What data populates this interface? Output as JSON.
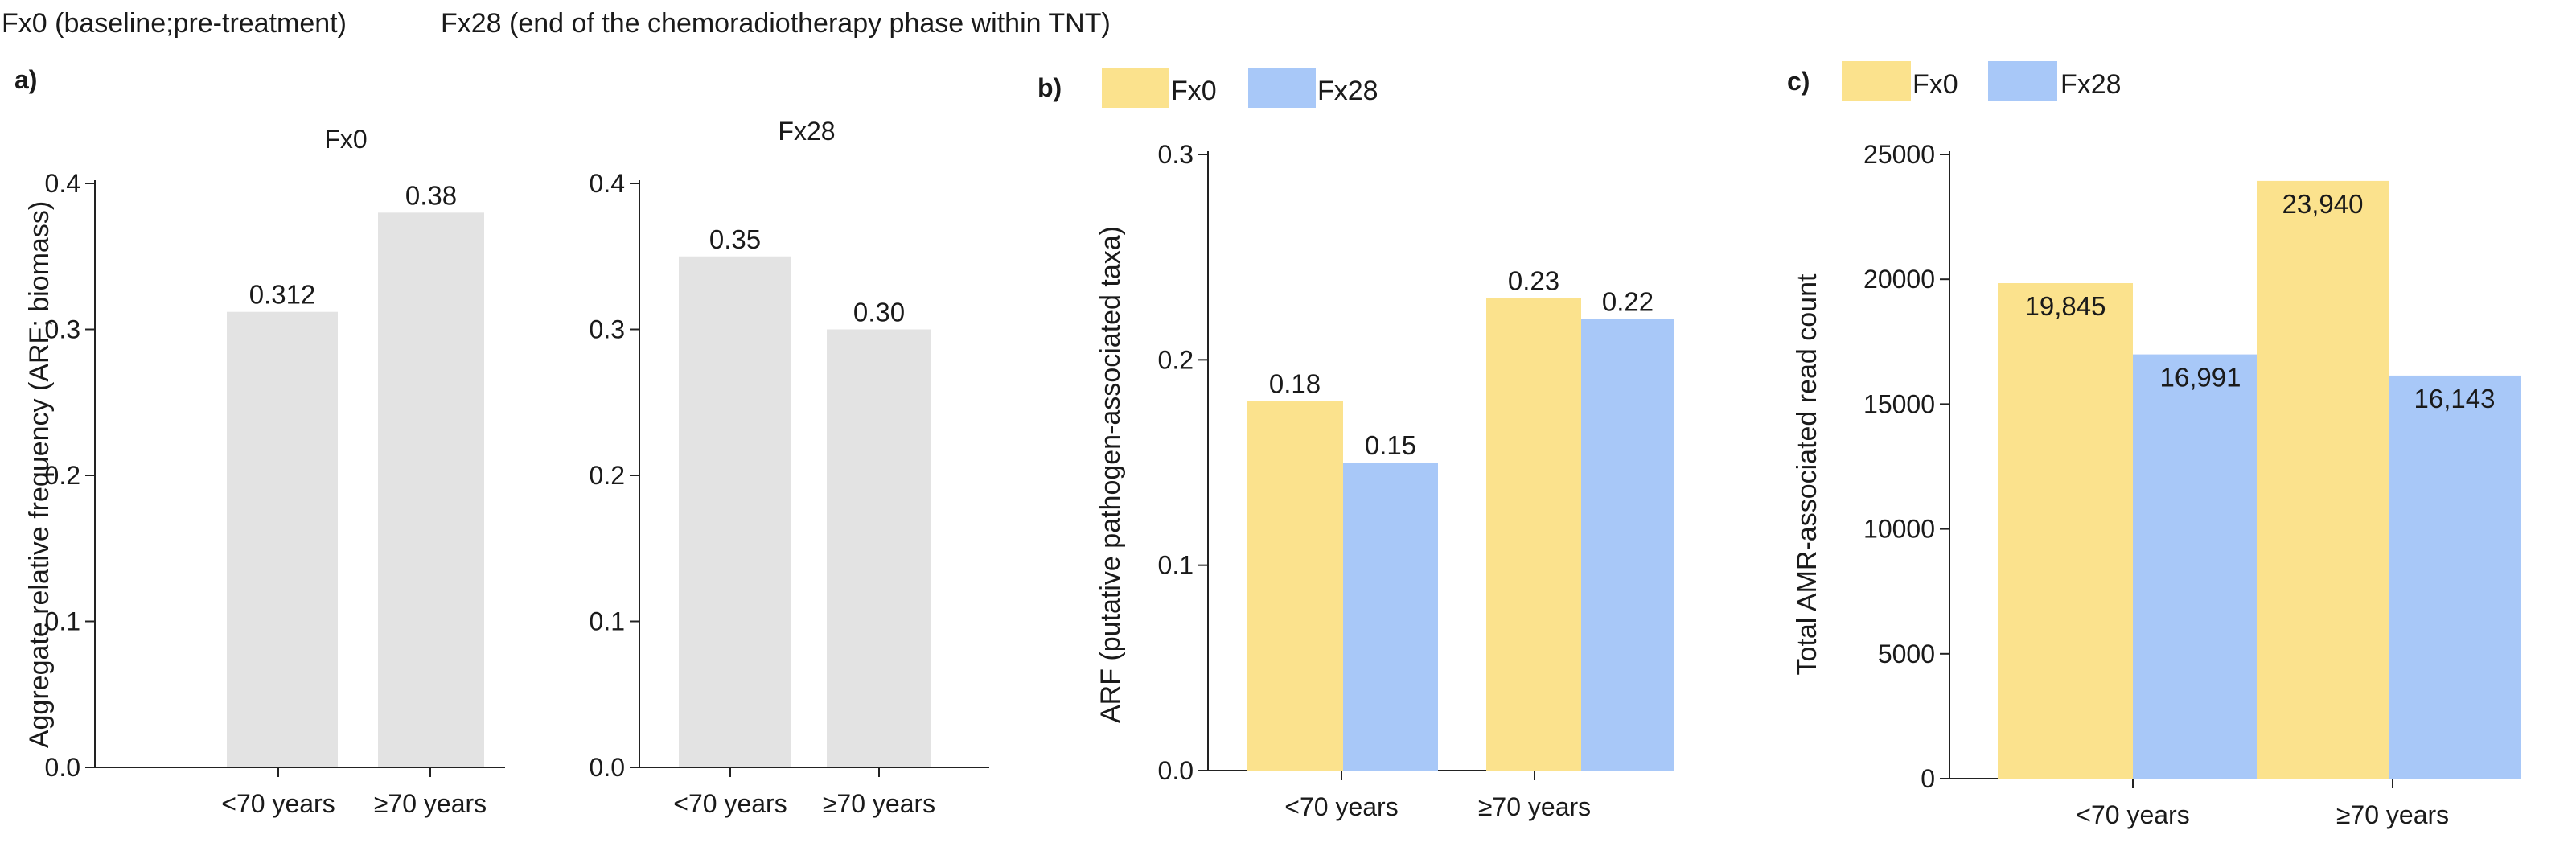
{
  "captions": {
    "fx0": "Fx0 (baseline;pre-treatment)",
    "fx28": "Fx28 (end of the chemoradiotherapy phase within TNT)"
  },
  "colors": {
    "gray": "#e3e3e3",
    "fx0": "#fbe28d",
    "fx28": "#a8c8f8"
  },
  "chart_data": [
    {
      "panel": "a)",
      "type": "bar",
      "title": "Fx0",
      "ylabel": "Aggregate relative frequency (ARF; biomass)",
      "categories": [
        "<70 years",
        "≥70 years"
      ],
      "values": [
        0.312,
        0.38
      ],
      "labels": [
        "0.312",
        "0.38"
      ],
      "ylim": [
        0,
        0.4
      ],
      "yticks": [
        0.0,
        0.1,
        0.2,
        0.3,
        0.4
      ],
      "ytick_labels": [
        "0.0",
        "0.1",
        "0.2",
        "0.3",
        "0.4"
      ]
    },
    {
      "panel": "",
      "type": "bar",
      "title": "Fx28",
      "ylabel": "",
      "categories": [
        "<70 years",
        "≥70 years"
      ],
      "values": [
        0.35,
        0.3
      ],
      "labels": [
        "0.35",
        "0.30"
      ],
      "ylim": [
        0,
        0.4
      ],
      "yticks": [
        0.0,
        0.1,
        0.2,
        0.3,
        0.4
      ],
      "ytick_labels": [
        "0.0",
        "0.1",
        "0.2",
        "0.3",
        "0.4"
      ]
    },
    {
      "panel": "b)",
      "type": "bar",
      "ylabel": "ARF (putative pathogen-associated taxa)",
      "categories": [
        "<70 years",
        "≥70 years"
      ],
      "series": [
        {
          "name": "Fx0",
          "values": [
            0.18,
            0.23
          ],
          "labels": [
            "0.18",
            "0.23"
          ]
        },
        {
          "name": "Fx28",
          "values": [
            0.15,
            0.22
          ],
          "labels": [
            "0.15",
            "0.22"
          ]
        }
      ],
      "legend": "top",
      "ylim": [
        0,
        0.3
      ],
      "yticks": [
        0.0,
        0.1,
        0.2,
        0.3
      ],
      "ytick_labels": [
        "0.0",
        "0.1",
        "0.2",
        "0.3"
      ]
    },
    {
      "panel": "c)",
      "type": "bar",
      "ylabel": "Total AMR-associated read count",
      "categories": [
        "<70 years",
        "≥70 years"
      ],
      "series": [
        {
          "name": "Fx0",
          "values": [
            19845,
            23940
          ],
          "labels": [
            "19,845",
            "23,940"
          ]
        },
        {
          "name": "Fx28",
          "values": [
            16991,
            16143
          ],
          "labels": [
            "16,991",
            "16,143"
          ]
        }
      ],
      "legend": "top",
      "ylim": [
        0,
        25000
      ],
      "yticks": [
        0,
        5000,
        10000,
        15000,
        20000,
        25000
      ],
      "ytick_labels": [
        "0",
        "5000",
        "10000",
        "15000",
        "20000",
        "25000"
      ]
    }
  ]
}
